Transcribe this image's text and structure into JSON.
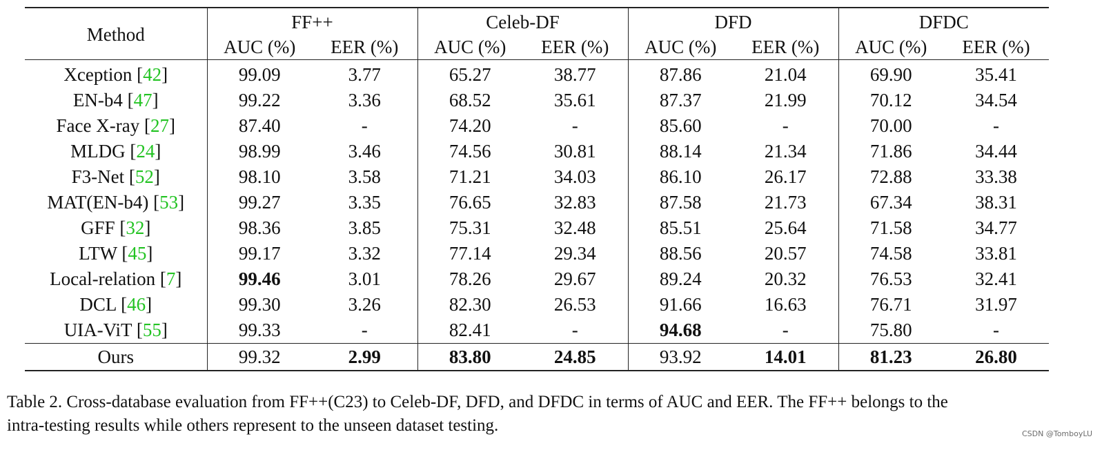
{
  "table": {
    "method_header": "Method",
    "datasets": [
      "FF++",
      "Celeb-DF",
      "DFD",
      "DFDC"
    ],
    "metric_headers": [
      "AUC (%)",
      "EER (%)"
    ],
    "rows": [
      {
        "method": "Xception",
        "cite": "42",
        "values": [
          "99.09",
          "3.77",
          "65.27",
          "38.77",
          "87.86",
          "21.04",
          "69.90",
          "35.41"
        ],
        "bold": []
      },
      {
        "method": "EN-b4",
        "cite": "47",
        "values": [
          "99.22",
          "3.36",
          "68.52",
          "35.61",
          "87.37",
          "21.99",
          "70.12",
          "34.54"
        ],
        "bold": []
      },
      {
        "method": "Face X-ray",
        "cite": "27",
        "values": [
          "87.40",
          "-",
          "74.20",
          "-",
          "85.60",
          "-",
          "70.00",
          "-"
        ],
        "bold": []
      },
      {
        "method": "MLDG",
        "cite": "24",
        "values": [
          "98.99",
          "3.46",
          "74.56",
          "30.81",
          "88.14",
          "21.34",
          "71.86",
          "34.44"
        ],
        "bold": []
      },
      {
        "method": "F3-Net",
        "cite": "52",
        "values": [
          "98.10",
          "3.58",
          "71.21",
          "34.03",
          "86.10",
          "26.17",
          "72.88",
          "33.38"
        ],
        "bold": []
      },
      {
        "method": "MAT(EN-b4)",
        "cite": "53",
        "values": [
          "99.27",
          "3.35",
          "76.65",
          "32.83",
          "87.58",
          "21.73",
          "67.34",
          "38.31"
        ],
        "bold": []
      },
      {
        "method": "GFF",
        "cite": "32",
        "values": [
          "98.36",
          "3.85",
          "75.31",
          "32.48",
          "85.51",
          "25.64",
          "71.58",
          "34.77"
        ],
        "bold": []
      },
      {
        "method": "LTW",
        "cite": "45",
        "values": [
          "99.17",
          "3.32",
          "77.14",
          "29.34",
          "88.56",
          "20.57",
          "74.58",
          "33.81"
        ],
        "bold": []
      },
      {
        "method": "Local-relation",
        "cite": "7",
        "values": [
          "99.46",
          "3.01",
          "78.26",
          "29.67",
          "89.24",
          "20.32",
          "76.53",
          "32.41"
        ],
        "bold": [
          0
        ]
      },
      {
        "method": "DCL",
        "cite": "46",
        "values": [
          "99.30",
          "3.26",
          "82.30",
          "26.53",
          "91.66",
          "16.63",
          "76.71",
          "31.97"
        ],
        "bold": []
      },
      {
        "method": "UIA-ViT",
        "cite": "55",
        "values": [
          "99.33",
          "-",
          "82.41",
          "-",
          "94.68",
          "-",
          "75.80",
          "-"
        ],
        "bold": [
          4
        ]
      }
    ],
    "ours": {
      "method": "Ours",
      "values": [
        "99.32",
        "2.99",
        "83.80",
        "24.85",
        "93.92",
        "14.01",
        "81.23",
        "26.80"
      ],
      "bold": [
        1,
        2,
        3,
        5,
        6,
        7
      ]
    }
  },
  "caption": {
    "line1": "Table 2. Cross-database evaluation from FF++(C23) to Celeb-DF, DFD, and DFDC in terms of AUC and EER. The FF++ belongs to the",
    "line2": "intra-testing results while others represent to the unseen dataset testing."
  },
  "watermark": "CSDN @TomboyLU",
  "colors": {
    "citation": "#22c322",
    "text": "#111111"
  }
}
